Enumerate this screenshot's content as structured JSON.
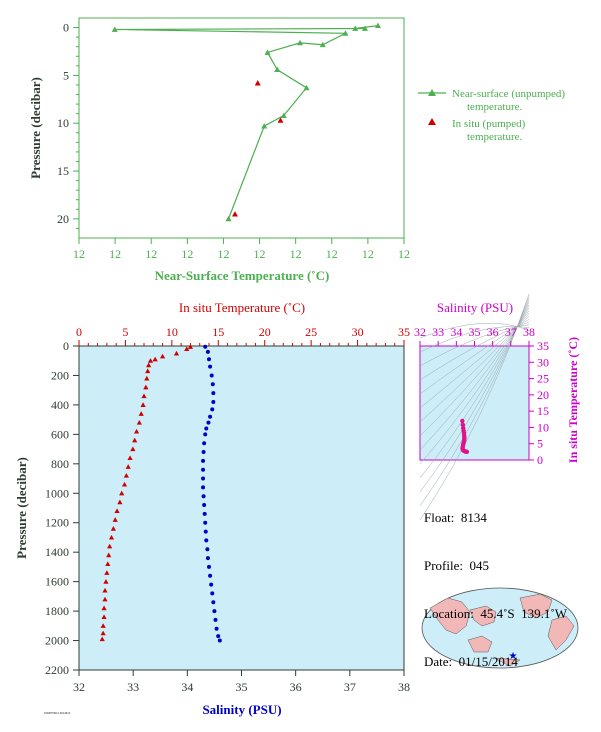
{
  "colors": {
    "green": "#4caf50",
    "red": "#d10000",
    "blue": "#0000cc",
    "magenta": "#cc00cc",
    "axis_text": "#2e3d33",
    "panel_bg": "#cdeef8",
    "land": "#f2b8b8",
    "ocean": "#cdeef8"
  },
  "top_chart": {
    "xlabel": "Near-Surface Temperature (˚C)",
    "ylabel": "Pressure (decibar)",
    "x_tick_labels": [
      "12",
      "12",
      "12",
      "12",
      "12",
      "12",
      "12",
      "12",
      "12",
      "12"
    ],
    "y_ticks": [
      0,
      5,
      10,
      15,
      20
    ],
    "legend": {
      "series1_line1": "Near-surface (unpumped)",
      "series1_line2": "temperature.",
      "series2_line1": "In situ (pumped)",
      "series2_line2": "temperature."
    }
  },
  "bottom_chart": {
    "top_axis_label": "In situ Temperature (˚C)",
    "bottom_axis_label": "Salinity (PSU)",
    "ylabel": "Pressure (decibar)",
    "temp_ticks": [
      0,
      5,
      10,
      15,
      20,
      25,
      30,
      35
    ],
    "sal_ticks": [
      32,
      33,
      34,
      35,
      36,
      37,
      38
    ],
    "p_ticks": [
      0,
      200,
      400,
      600,
      800,
      1000,
      1200,
      1400,
      1600,
      1800,
      2000,
      2200
    ]
  },
  "ts_chart": {
    "title": "Salinity (PSU)",
    "ylabel": "In situ Temperature (˚C)",
    "sal_ticks": [
      32,
      33,
      34,
      35,
      36,
      37,
      38
    ],
    "temp_ticks": [
      0,
      5,
      10,
      15,
      20,
      25,
      30,
      35
    ]
  },
  "info": {
    "float": "Float:  8134",
    "profile": "Profile:  045",
    "location": "Location:  45.4˚S  139.1˚W",
    "date": "Date:  01/15/2014"
  },
  "footer": "1993073012 2014012",
  "chart_data": [
    {
      "type": "scatter",
      "title": "",
      "xlabel": "Near-Surface Temperature (˚C)",
      "ylabel": "Pressure (decibar)",
      "xlim": [
        0,
        1
      ],
      "ylim": [
        22,
        -1
      ],
      "series": [
        {
          "name": "Near-surface (unpumped) temperature.",
          "points": [
            [
              0.92,
              -0.2
            ],
            [
              0.85,
              0.1
            ],
            [
              0.88,
              0.1
            ],
            [
              0.11,
              0.2
            ],
            [
              0.82,
              0.6
            ],
            [
              0.75,
              1.8
            ],
            [
              0.68,
              1.6
            ],
            [
              0.58,
              2.6
            ],
            [
              0.61,
              4.4
            ],
            [
              0.7,
              6.3
            ],
            [
              0.63,
              9.2
            ],
            [
              0.57,
              10.3
            ],
            [
              0.46,
              20.0
            ]
          ]
        },
        {
          "name": "In situ (pumped) temperature.",
          "points": [
            [
              0.55,
              5.8
            ],
            [
              0.62,
              9.7
            ],
            [
              0.48,
              19.5
            ]
          ]
        }
      ]
    },
    {
      "type": "scatter",
      "title": "",
      "xlabel": "Salinity (PSU)",
      "ylabel": "Pressure (decibar)",
      "xlim_salinity": [
        32,
        38
      ],
      "xlim_temperature": [
        0,
        35
      ],
      "ylim": [
        2200,
        0
      ],
      "series": [
        {
          "name": "In situ Temperature (˚C)",
          "points": [
            [
              12.0,
              5
            ],
            [
              11.6,
              20
            ],
            [
              10.5,
              50
            ],
            [
              9.0,
              70
            ],
            [
              8.2,
              90
            ],
            [
              7.7,
              100
            ],
            [
              7.5,
              130
            ],
            [
              7.4,
              170
            ],
            [
              7.3,
              220
            ],
            [
              7.2,
              280
            ],
            [
              7.0,
              340
            ],
            [
              6.9,
              400
            ],
            [
              6.7,
              460
            ],
            [
              6.5,
              520
            ],
            [
              6.2,
              580
            ],
            [
              6.0,
              640
            ],
            [
              5.8,
              700
            ],
            [
              5.5,
              760
            ],
            [
              5.3,
              820
            ],
            [
              5.1,
              880
            ],
            [
              4.9,
              940
            ],
            [
              4.6,
              1000
            ],
            [
              4.4,
              1060
            ],
            [
              4.1,
              1120
            ],
            [
              3.9,
              1180
            ],
            [
              3.7,
              1240
            ],
            [
              3.5,
              1300
            ],
            [
              3.3,
              1360
            ],
            [
              3.2,
              1420
            ],
            [
              3.1,
              1480
            ],
            [
              3.0,
              1540
            ],
            [
              2.9,
              1600
            ],
            [
              2.8,
              1660
            ],
            [
              2.8,
              1720
            ],
            [
              2.7,
              1780
            ],
            [
              2.7,
              1840
            ],
            [
              2.6,
              1900
            ],
            [
              2.6,
              1950
            ],
            [
              2.5,
              1990
            ]
          ]
        },
        {
          "name": "Salinity (PSU)",
          "points": [
            [
              34.33,
              5
            ],
            [
              34.38,
              40
            ],
            [
              34.4,
              90
            ],
            [
              34.42,
              140
            ],
            [
              34.45,
              200
            ],
            [
              34.47,
              260
            ],
            [
              34.48,
              320
            ],
            [
              34.48,
              380
            ],
            [
              34.46,
              430
            ],
            [
              34.42,
              480
            ],
            [
              34.39,
              520
            ],
            [
              34.35,
              560
            ],
            [
              34.33,
              600
            ],
            [
              34.31,
              660
            ],
            [
              34.3,
              720
            ],
            [
              34.29,
              780
            ],
            [
              34.29,
              840
            ],
            [
              34.29,
              900
            ],
            [
              34.29,
              960
            ],
            [
              34.3,
              1020
            ],
            [
              34.31,
              1080
            ],
            [
              34.32,
              1140
            ],
            [
              34.33,
              1200
            ],
            [
              34.34,
              1260
            ],
            [
              34.35,
              1320
            ],
            [
              34.37,
              1380
            ],
            [
              34.38,
              1440
            ],
            [
              34.4,
              1500
            ],
            [
              34.42,
              1560
            ],
            [
              34.44,
              1620
            ],
            [
              34.46,
              1680
            ],
            [
              34.48,
              1740
            ],
            [
              34.5,
              1800
            ],
            [
              34.52,
              1860
            ],
            [
              34.54,
              1920
            ],
            [
              34.57,
              1970
            ],
            [
              34.6,
              2000
            ]
          ]
        }
      ]
    },
    {
      "type": "scatter",
      "title": "Salinity (PSU)",
      "xlabel": "Salinity (PSU)",
      "ylabel": "In situ Temperature (˚C)",
      "xlim": [
        32,
        38
      ],
      "ylim": [
        0,
        35
      ],
      "series": [
        {
          "name": "T-S",
          "points": [
            [
              34.33,
              12.0
            ],
            [
              34.36,
              10.8
            ],
            [
              34.38,
              9.8
            ],
            [
              34.4,
              9.0
            ],
            [
              34.42,
              8.3
            ],
            [
              34.43,
              7.6
            ],
            [
              34.44,
              7.0
            ],
            [
              34.44,
              6.5
            ],
            [
              34.43,
              6.0
            ],
            [
              34.41,
              5.5
            ],
            [
              34.39,
              5.0
            ],
            [
              34.37,
              4.5
            ],
            [
              34.35,
              4.0
            ],
            [
              34.34,
              3.6
            ],
            [
              34.35,
              3.2
            ],
            [
              34.38,
              3.0
            ],
            [
              34.42,
              2.8
            ],
            [
              34.46,
              2.7
            ],
            [
              34.5,
              2.6
            ],
            [
              34.54,
              2.55
            ],
            [
              34.58,
              2.5
            ]
          ]
        }
      ]
    }
  ]
}
